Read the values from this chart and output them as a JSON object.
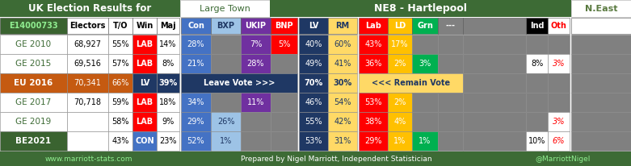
{
  "title_left": "UK Election Results for",
  "title_type": "Large Town",
  "title_seat": "NE8 - Hartlepool",
  "title_region": "N.East",
  "seat_id": "E14000733",
  "rows": [
    {
      "election": "GE 2010",
      "electors": "68,927",
      "to": "55%",
      "win": "LAB",
      "win_color": "#FF0000",
      "maj": "14%",
      "con": "28%",
      "bxp": "",
      "ukip": "7%",
      "bnp": "5%",
      "lv": "40%",
      "rm": "60%",
      "lab": "43%",
      "ld": "17%",
      "grn": "",
      "dash": "",
      "ind": "",
      "oth": "",
      "special_eu": false,
      "eu_row": false,
      "be_row": false
    },
    {
      "election": "GE 2015",
      "electors": "69,516",
      "to": "57%",
      "win": "LAB",
      "win_color": "#FF0000",
      "maj": "8%",
      "con": "21%",
      "bxp": "",
      "ukip": "28%",
      "bnp": "",
      "lv": "49%",
      "rm": "41%",
      "lab": "36%",
      "ld": "2%",
      "grn": "3%",
      "dash": "",
      "ind": "8%",
      "oth": "3%",
      "special_eu": false,
      "eu_row": false,
      "be_row": false
    },
    {
      "election": "EU 2016",
      "electors": "70,341",
      "to": "66%",
      "win": "LV",
      "win_color": "#1F3864",
      "maj": "39%",
      "con": "",
      "bxp": "",
      "ukip": "",
      "bnp": "",
      "lv": "70%",
      "rm": "30%",
      "lab": "",
      "ld": "",
      "grn": "",
      "dash": "",
      "ind": "",
      "oth": "",
      "special_eu": true,
      "eu_row": true,
      "be_row": false
    },
    {
      "election": "GE 2017",
      "electors": "70,718",
      "to": "59%",
      "win": "LAB",
      "win_color": "#FF0000",
      "maj": "18%",
      "con": "34%",
      "bxp": "",
      "ukip": "11%",
      "bnp": "",
      "lv": "46%",
      "rm": "54%",
      "lab": "53%",
      "ld": "2%",
      "grn": "",
      "dash": "",
      "ind": "",
      "oth": "",
      "special_eu": false,
      "eu_row": false,
      "be_row": false
    },
    {
      "election": "GE 2019",
      "electors": "",
      "to": "58%",
      "win": "LAB",
      "win_color": "#FF0000",
      "maj": "9%",
      "con": "29%",
      "bxp": "26%",
      "ukip": "",
      "bnp": "",
      "lv": "55%",
      "rm": "42%",
      "lab": "38%",
      "ld": "4%",
      "grn": "",
      "dash": "",
      "ind": "",
      "oth": "3%",
      "special_eu": false,
      "eu_row": false,
      "be_row": false
    },
    {
      "election": "BE2021",
      "electors": "",
      "to": "43%",
      "win": "CON",
      "win_color": "#4472C4",
      "maj": "23%",
      "con": "52%",
      "bxp": "1%",
      "ukip": "",
      "bnp": "",
      "lv": "53%",
      "rm": "31%",
      "lab": "29%",
      "ld": "1%",
      "grn": "1%",
      "dash": "",
      "ind": "10%",
      "oth": "6%",
      "special_eu": false,
      "eu_row": false,
      "be_row": true
    }
  ],
  "footer_left": "www.marriott-stats.com",
  "footer_mid": "Prepared by Nigel Marriott, Independent Statistician",
  "footer_right": "@MarriottNigel",
  "bg_green": "#3D6B35",
  "bg_dark_green": "#3A6330",
  "eu_row_color": "#C55A11",
  "be_row_color": "#3D6B35",
  "gray_cell": "#808080",
  "col_header_row": [
    {
      "key": "con",
      "label": "Con",
      "bg": "#4472C4",
      "fg": "#FFFFFF"
    },
    {
      "key": "bxp",
      "label": "BXP",
      "bg": "#9DC3E6",
      "fg": "#1F3864"
    },
    {
      "key": "ukip",
      "label": "UKIP",
      "bg": "#7030A0",
      "fg": "#FFFFFF"
    },
    {
      "key": "bnp",
      "label": "BNP",
      "bg": "#FF0000",
      "fg": "#FFFFFF"
    },
    {
      "key": "lv",
      "label": "LV",
      "bg": "#1F3864",
      "fg": "#FFFFFF"
    },
    {
      "key": "rm",
      "label": "RM",
      "bg": "#FFD966",
      "fg": "#1F3864"
    },
    {
      "key": "lab",
      "label": "Lab",
      "bg": "#FF0000",
      "fg": "#FFFFFF"
    },
    {
      "key": "ld",
      "label": "LD",
      "bg": "#FFC000",
      "fg": "#FFFFFF"
    },
    {
      "key": "grn",
      "label": "Grn",
      "bg": "#00B050",
      "fg": "#FFFFFF"
    },
    {
      "key": "dash",
      "label": "---",
      "bg": "#808080",
      "fg": "#FFFFFF"
    },
    {
      "key": "ind",
      "label": "Ind",
      "bg": "#000000",
      "fg": "#FFFFFF"
    },
    {
      "key": "oth",
      "label": "Oth",
      "bg": "#FFFFFF",
      "fg": "#FF0000"
    }
  ]
}
